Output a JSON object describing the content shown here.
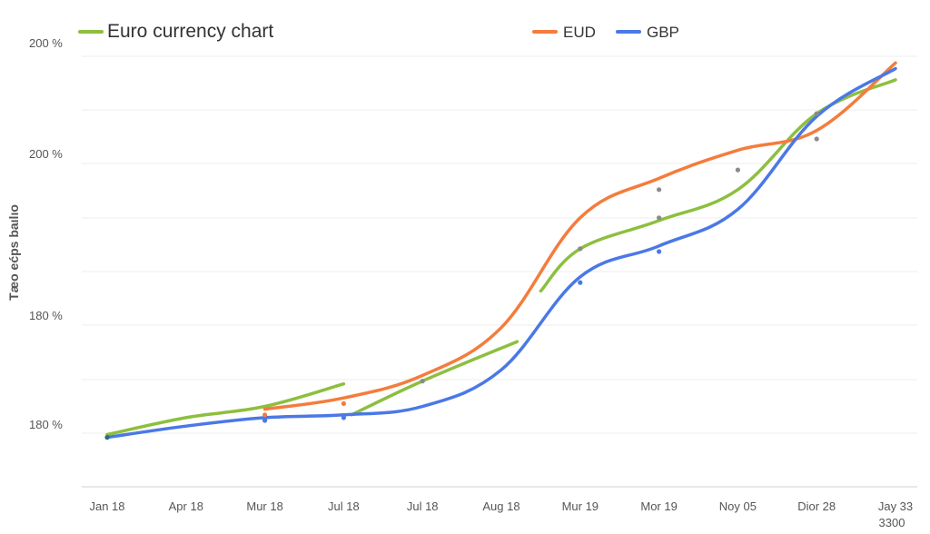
{
  "chart_data": {
    "type": "line",
    "title": "Euro currency chart",
    "ylabel": "Tæo ećps baılıo",
    "xlabel": "",
    "categories": [
      "Jan 18",
      "Apr 18",
      "Mur 18",
      "Jul 18",
      "Jul 18",
      "Aug 18",
      "Mur 19",
      "Mor 19",
      "Noy 05",
      "Dior 28",
      "Jay 33"
    ],
    "x_extra_label": "3300",
    "y_tick_labels": [
      "200 %",
      "200 %",
      "180 %",
      "180 %"
    ],
    "ylim": [
      0,
      7
    ],
    "grid": true,
    "legend_position": "top",
    "colors": {
      "green": "#8dbf3f",
      "orange": "#f47c3c",
      "blue": "#4a78e6"
    },
    "series": [
      {
        "name": "",
        "color": "#8dbf3f",
        "segments": [
          {
            "x": [
              0,
              1,
              2,
              3
            ],
            "y": [
              0.25,
              0.55,
              0.75,
              1.15
            ]
          },
          {
            "x": [
              3.1,
              4,
              5.2
            ],
            "y": [
              0.6,
              1.2,
              1.9
            ]
          },
          {
            "x": [
              5.5,
              6,
              7,
              8,
              9,
              10
            ],
            "y": [
              2.8,
              3.55,
              4.05,
              4.6,
              5.95,
              6.55
            ]
          }
        ]
      },
      {
        "name": "EUD",
        "color": "#f47c3c",
        "segments": [
          {
            "x": [
              2,
              3,
              4,
              5,
              6,
              7,
              8,
              9,
              10
            ],
            "y": [
              0.7,
              0.9,
              1.3,
              2.15,
              4.1,
              4.8,
              5.3,
              5.65,
              6.85
            ]
          }
        ]
      },
      {
        "name": "GBP",
        "color": "#4a78e6",
        "segments": [
          {
            "x": [
              0,
              1,
              2,
              3,
              4,
              5,
              6,
              7,
              8,
              9,
              10
            ],
            "y": [
              0.2,
              0.4,
              0.55,
              0.6,
              0.75,
              1.4,
              3.05,
              3.6,
              4.25,
              5.9,
              6.75
            ]
          }
        ]
      }
    ],
    "markers": [
      {
        "x": 0,
        "y": 0.2,
        "color": "#2a6f7a"
      },
      {
        "x": 2,
        "y": 0.5,
        "color": "#4a78e6"
      },
      {
        "x": 2,
        "y": 0.6,
        "color": "#f47c3c"
      },
      {
        "x": 3,
        "y": 0.55,
        "color": "#4a78e6"
      },
      {
        "x": 3,
        "y": 0.8,
        "color": "#f47c3c"
      },
      {
        "x": 4,
        "y": 1.2,
        "color": "#8a8a8a"
      },
      {
        "x": 6,
        "y": 2.95,
        "color": "#4a78e6"
      },
      {
        "x": 6,
        "y": 3.55,
        "color": "#8a8a8a"
      },
      {
        "x": 7,
        "y": 3.5,
        "color": "#4a78e6"
      },
      {
        "x": 7,
        "y": 4.1,
        "color": "#8a8a8a"
      },
      {
        "x": 7,
        "y": 4.6,
        "color": "#8a8a8a"
      },
      {
        "x": 8,
        "y": 4.95,
        "color": "#8a8a8a"
      },
      {
        "x": 9,
        "y": 5.5,
        "color": "#8a8a8a"
      },
      {
        "x": 9,
        "y": 5.95,
        "color": "#8a8a8a"
      }
    ]
  }
}
